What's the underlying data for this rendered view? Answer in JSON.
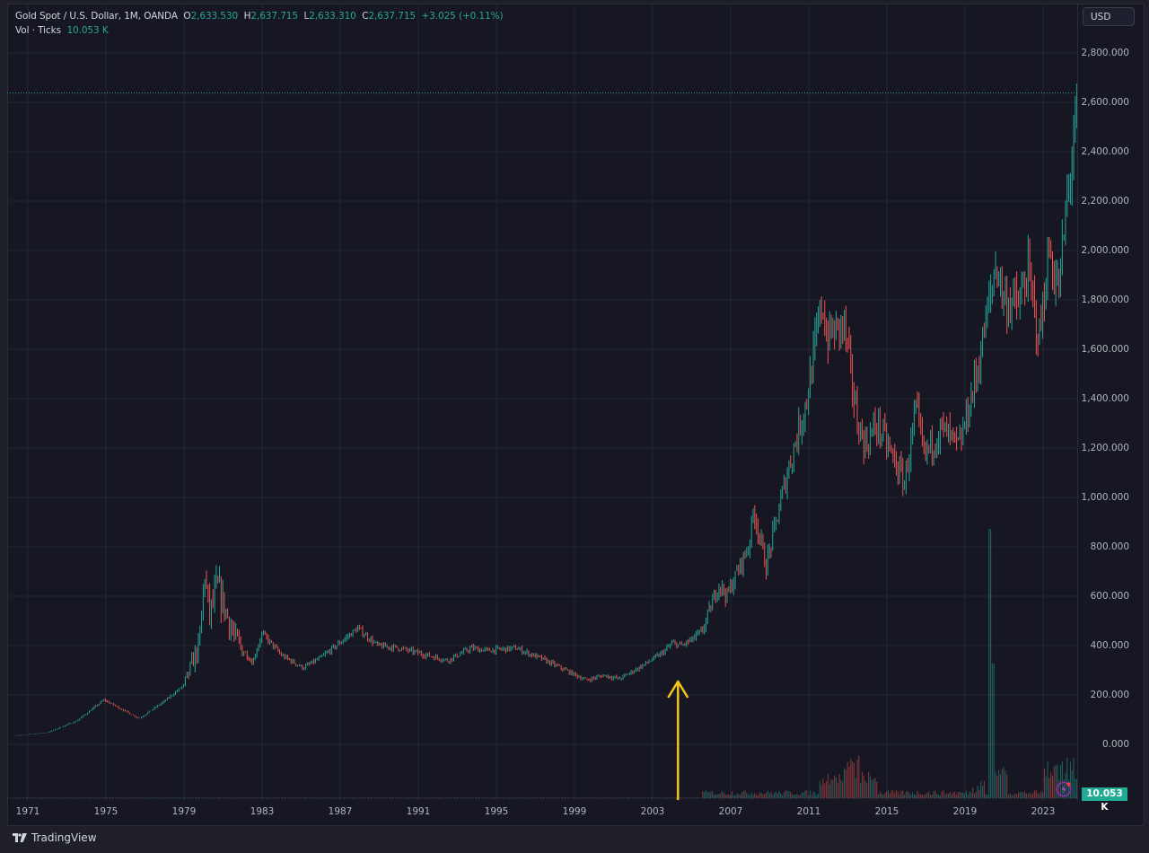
{
  "legend": {
    "symbol": "Gold Spot / U.S. Dollar, 1M, OANDA",
    "open_label": "O",
    "open": "2,633.530",
    "high_label": "H",
    "high": "2,637.715",
    "low_label": "L",
    "low": "2,633.310",
    "close_label": "C",
    "close": "2,637.715",
    "change": "+3.025 (+0.11%)",
    "volume_label": "Vol · Ticks",
    "volume": "10.053 K"
  },
  "price_axis": {
    "currency_button": "USD",
    "ticks": [
      "2,800.000",
      "2,600.000",
      "2,400.000",
      "2,200.000",
      "2,000.000",
      "1,800.000",
      "1,600.000",
      "1,400.000",
      "1,200.000",
      "1,000.000",
      "800.000",
      "600.000",
      "400.000",
      "200.000",
      "0.000"
    ],
    "volume_tag": "10.053 K"
  },
  "time_axis": {
    "ticks": [
      "1971",
      "1975",
      "1979",
      "1983",
      "1987",
      "1991",
      "1995",
      "1999",
      "2003",
      "2007",
      "2011",
      "2015",
      "2019",
      "2023"
    ]
  },
  "footer": {
    "logo_glyph": "TV",
    "brand": "TradingView"
  },
  "colors": {
    "up": "#26a69a",
    "down": "#ef5350",
    "arrow": "#f5c518",
    "background": "#161722",
    "grid": "#232532",
    "price_line": "#26a69a",
    "volume_tag_bg": "#22ab94"
  },
  "annotation": {
    "type": "arrow-up",
    "year": 2004.3,
    "color": "#f5c518"
  },
  "chart_data": {
    "type": "ohlc",
    "title": "Gold Spot / U.S. Dollar, 1M, OANDA",
    "xlabel": "",
    "ylabel": "USD",
    "ylim": [
      0,
      2800
    ],
    "x_ticks": [
      1971,
      1975,
      1979,
      1983,
      1987,
      1991,
      1995,
      1999,
      2003,
      2007,
      2011,
      2015,
      2019,
      2023
    ],
    "y_ticks": [
      0,
      200,
      400,
      600,
      800,
      1000,
      1200,
      1400,
      1600,
      1800,
      2000,
      2200,
      2400,
      2600,
      2800
    ],
    "grid": true,
    "last_price": 2637.715,
    "last_ohlc": {
      "open": 2633.53,
      "high": 2637.715,
      "low": 2633.31,
      "close": 2637.715
    },
    "series_anchor_closes": {
      "comment_free_keys_are_year_fraction": true,
      "x": [
        1970.5,
        1972.0,
        1973.5,
        1974.9,
        1976.7,
        1978.0,
        1979.0,
        1979.8,
        1980.05,
        1980.3,
        1980.7,
        1981.6,
        1982.5,
        1983.0,
        1984.0,
        1985.1,
        1986.0,
        1987.9,
        1988.9,
        1990.0,
        1991.0,
        1992.5,
        1993.7,
        1994.5,
        1996.0,
        1997.5,
        1999.6,
        2000.5,
        2001.3,
        2002.5,
        2003.5,
        2004.0,
        2004.5,
        2005.5,
        2006.4,
        2006.8,
        2007.9,
        2008.2,
        2008.8,
        2009.9,
        2010.9,
        2011.7,
        2011.9,
        2012.8,
        2013.5,
        2013.9,
        2014.5,
        2015.9,
        2016.5,
        2016.9,
        2017.8,
        2018.7,
        2019.6,
        2020.6,
        2021.0,
        2021.8,
        2022.2,
        2022.8,
        2023.3,
        2023.8,
        2024.2,
        2024.5,
        2024.85
      ],
      "y": [
        36,
        48,
        95,
        180,
        105,
        175,
        240,
        410,
        700,
        520,
        640,
        430,
        330,
        450,
        360,
        310,
        350,
        470,
        400,
        390,
        370,
        340,
        390,
        380,
        390,
        340,
        260,
        280,
        265,
        320,
        370,
        410,
        400,
        450,
        650,
        600,
        800,
        950,
        720,
        1100,
        1400,
        1800,
        1650,
        1700,
        1300,
        1210,
        1300,
        1060,
        1350,
        1170,
        1280,
        1200,
        1500,
        1950,
        1800,
        1780,
        1920,
        1640,
        2000,
        1830,
        2180,
        2400,
        2637
      ]
    },
    "volume": {
      "unit": "K ticks",
      "last": 10.053,
      "note": "Tick volume near zero before ~2006, spikes around 2013 and 2020, largest spike early 2020"
    }
  }
}
